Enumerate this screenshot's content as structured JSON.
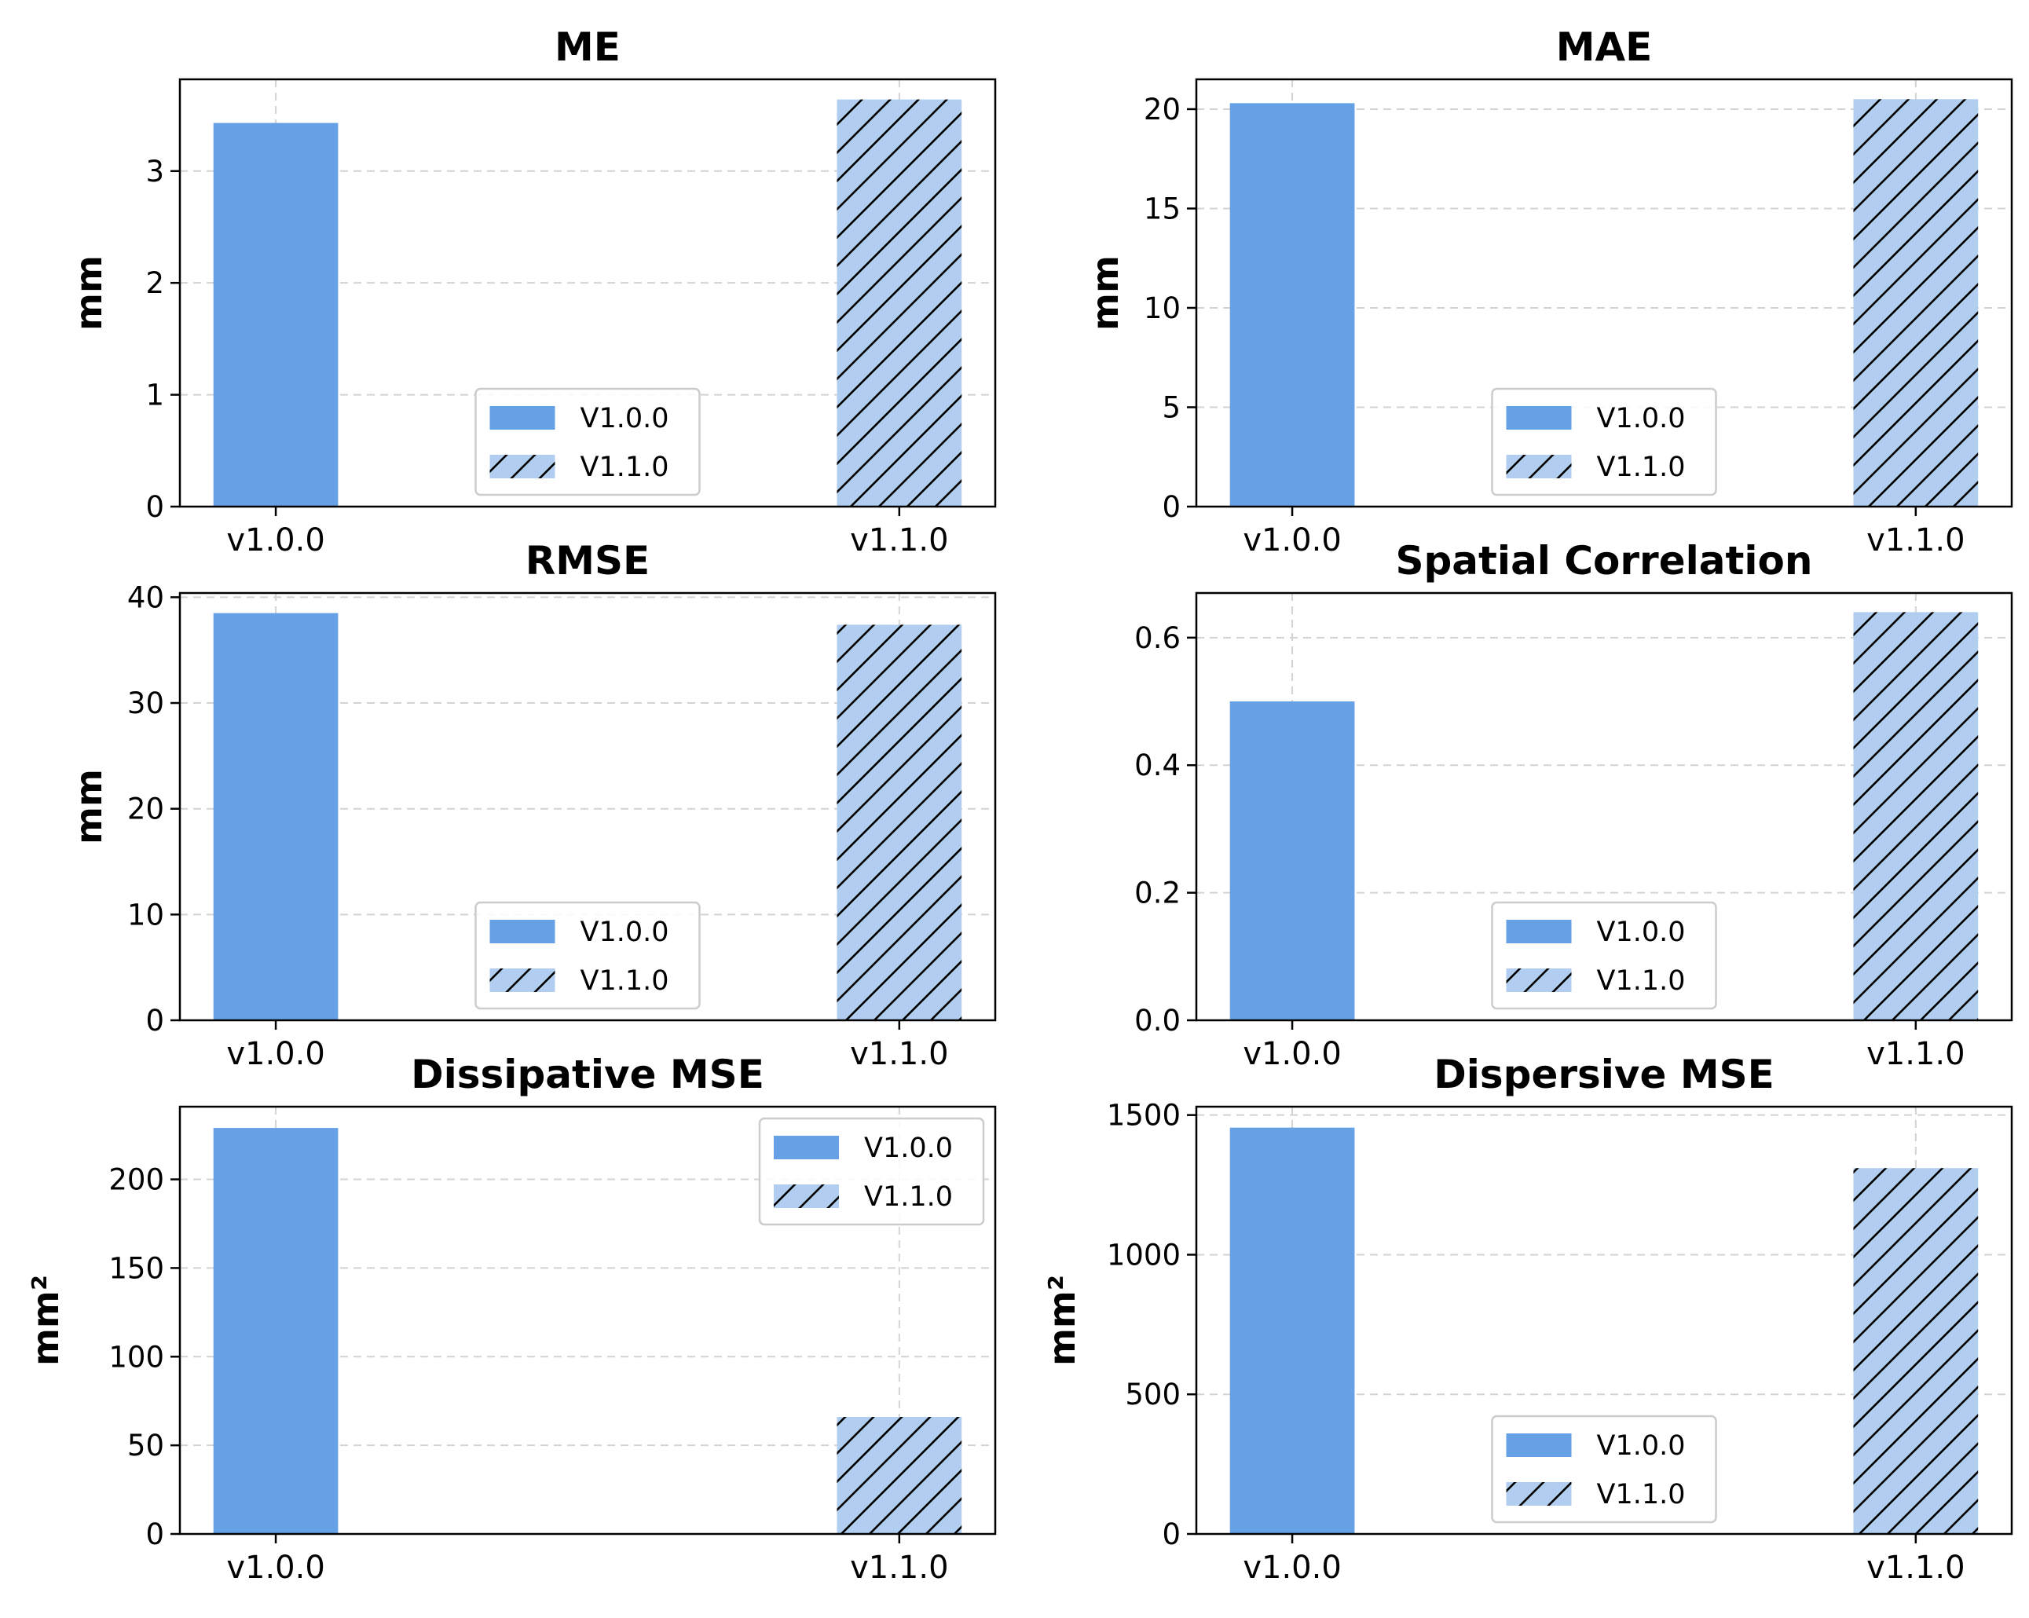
{
  "chart_data": [
    {
      "type": "bar",
      "title": "ME",
      "ylabel": "mm",
      "categories": [
        "v1.0.0",
        "v1.1.0"
      ],
      "series": [
        {
          "name": "V1.0.0",
          "values": [
            3.43,
            null
          ]
        },
        {
          "name": "V1.1.0",
          "values": [
            null,
            3.64
          ]
        }
      ],
      "ylim": [
        0,
        3.82
      ],
      "yticks": [
        0,
        1,
        2,
        3
      ],
      "ytick_labels": [
        "0",
        "1",
        "2",
        "3"
      ],
      "grid": true,
      "legend": "lower-center"
    },
    {
      "type": "bar",
      "title": "MAE",
      "ylabel": "mm",
      "categories": [
        "v1.0.0",
        "v1.1.0"
      ],
      "series": [
        {
          "name": "V1.0.0",
          "values": [
            20.3,
            null
          ]
        },
        {
          "name": "V1.1.0",
          "values": [
            null,
            20.5
          ]
        }
      ],
      "ylim": [
        0,
        21.5
      ],
      "yticks": [
        0,
        5,
        10,
        15,
        20
      ],
      "ytick_labels": [
        "0",
        "5",
        "10",
        "15",
        "20"
      ],
      "grid": true,
      "legend": "lower-center"
    },
    {
      "type": "bar",
      "title": "RMSE",
      "ylabel": "mm",
      "categories": [
        "v1.0.0",
        "v1.1.0"
      ],
      "series": [
        {
          "name": "V1.0.0",
          "values": [
            38.5,
            null
          ]
        },
        {
          "name": "V1.1.0",
          "values": [
            null,
            37.4
          ]
        }
      ],
      "ylim": [
        0,
        40.4
      ],
      "yticks": [
        0,
        10,
        20,
        30,
        40
      ],
      "ytick_labels": [
        "0",
        "10",
        "20",
        "30",
        "40"
      ],
      "grid": true,
      "legend": "lower-center"
    },
    {
      "type": "bar",
      "title": "Spatial Correlation",
      "ylabel": "",
      "categories": [
        "v1.0.0",
        "v1.1.0"
      ],
      "series": [
        {
          "name": "V1.0.0",
          "values": [
            0.5,
            null
          ]
        },
        {
          "name": "V1.1.0",
          "values": [
            null,
            0.64
          ]
        }
      ],
      "ylim": [
        0,
        0.67
      ],
      "yticks": [
        0,
        0.2,
        0.4,
        0.6
      ],
      "ytick_labels": [
        "0.0",
        "0.2",
        "0.4",
        "0.6"
      ],
      "grid": true,
      "legend": "lower-center"
    },
    {
      "type": "bar",
      "title": "Dissipative MSE",
      "ylabel": "mm²",
      "categories": [
        "v1.0.0",
        "v1.1.0"
      ],
      "series": [
        {
          "name": "V1.0.0",
          "values": [
            229,
            null
          ]
        },
        {
          "name": "V1.1.0",
          "values": [
            null,
            66
          ]
        }
      ],
      "ylim": [
        0,
        241
      ],
      "yticks": [
        0,
        50,
        100,
        150,
        200
      ],
      "ytick_labels": [
        "0",
        "50",
        "100",
        "150",
        "200"
      ],
      "grid": true,
      "legend": "upper-right"
    },
    {
      "type": "bar",
      "title": "Dispersive MSE",
      "ylabel": "mm²",
      "categories": [
        "v1.0.0",
        "v1.1.0"
      ],
      "series": [
        {
          "name": "V1.0.0",
          "values": [
            1455,
            null
          ]
        },
        {
          "name": "V1.1.0",
          "values": [
            null,
            1310
          ]
        }
      ],
      "ylim": [
        0,
        1530
      ],
      "yticks": [
        0,
        500,
        1000,
        1500
      ],
      "ytick_labels": [
        "0",
        "500",
        "1000",
        "1500"
      ],
      "grid": true,
      "legend": "lower-center"
    }
  ],
  "colors": {
    "v100": "#66a0e5",
    "v110": "#b1cdf0",
    "grid": "#d3d3d3",
    "hatch": "#000000"
  }
}
